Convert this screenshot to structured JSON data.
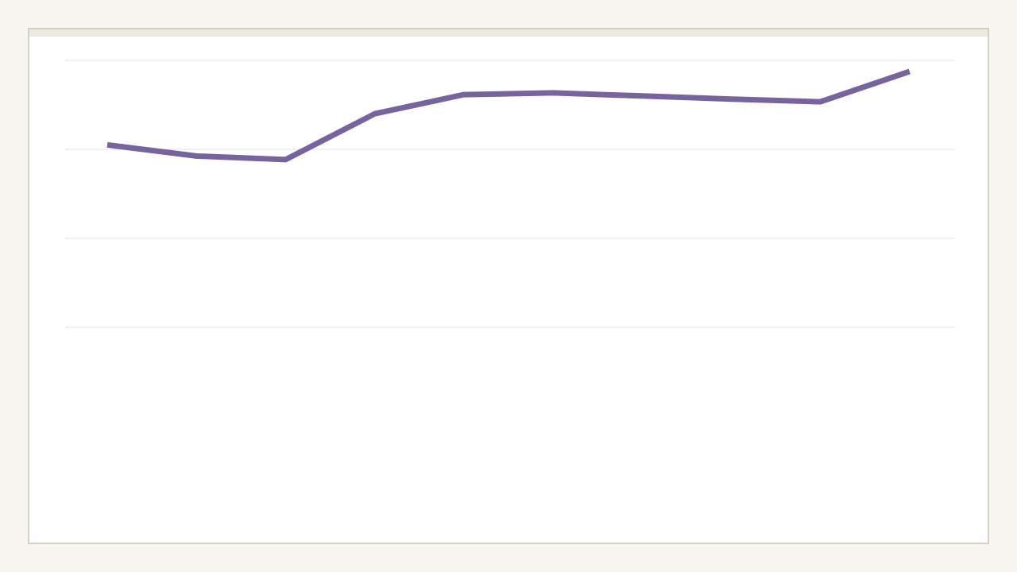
{
  "chart_data": {
    "type": "line",
    "title": "",
    "xlabel": "",
    "ylabel": "",
    "grid": true,
    "ylim": [
      0,
      10
    ],
    "yticks": [
      4,
      6,
      8,
      10
    ],
    "series": [
      {
        "color": "#77649f",
        "x": [
          1,
          2,
          3,
          4,
          5,
          6,
          7,
          8,
          9,
          10
        ],
        "values": [
          8.1,
          7.85,
          7.77,
          8.8,
          9.23,
          9.27,
          9.2,
          9.13,
          9.07,
          9.75
        ]
      }
    ]
  },
  "colors": {
    "page_background": "#f6f5f0",
    "frame_border": "#d4d0c5",
    "frame_strip": "#ece9e1",
    "plot_background": "#ffffff",
    "gridline": "#e3e3e3"
  }
}
